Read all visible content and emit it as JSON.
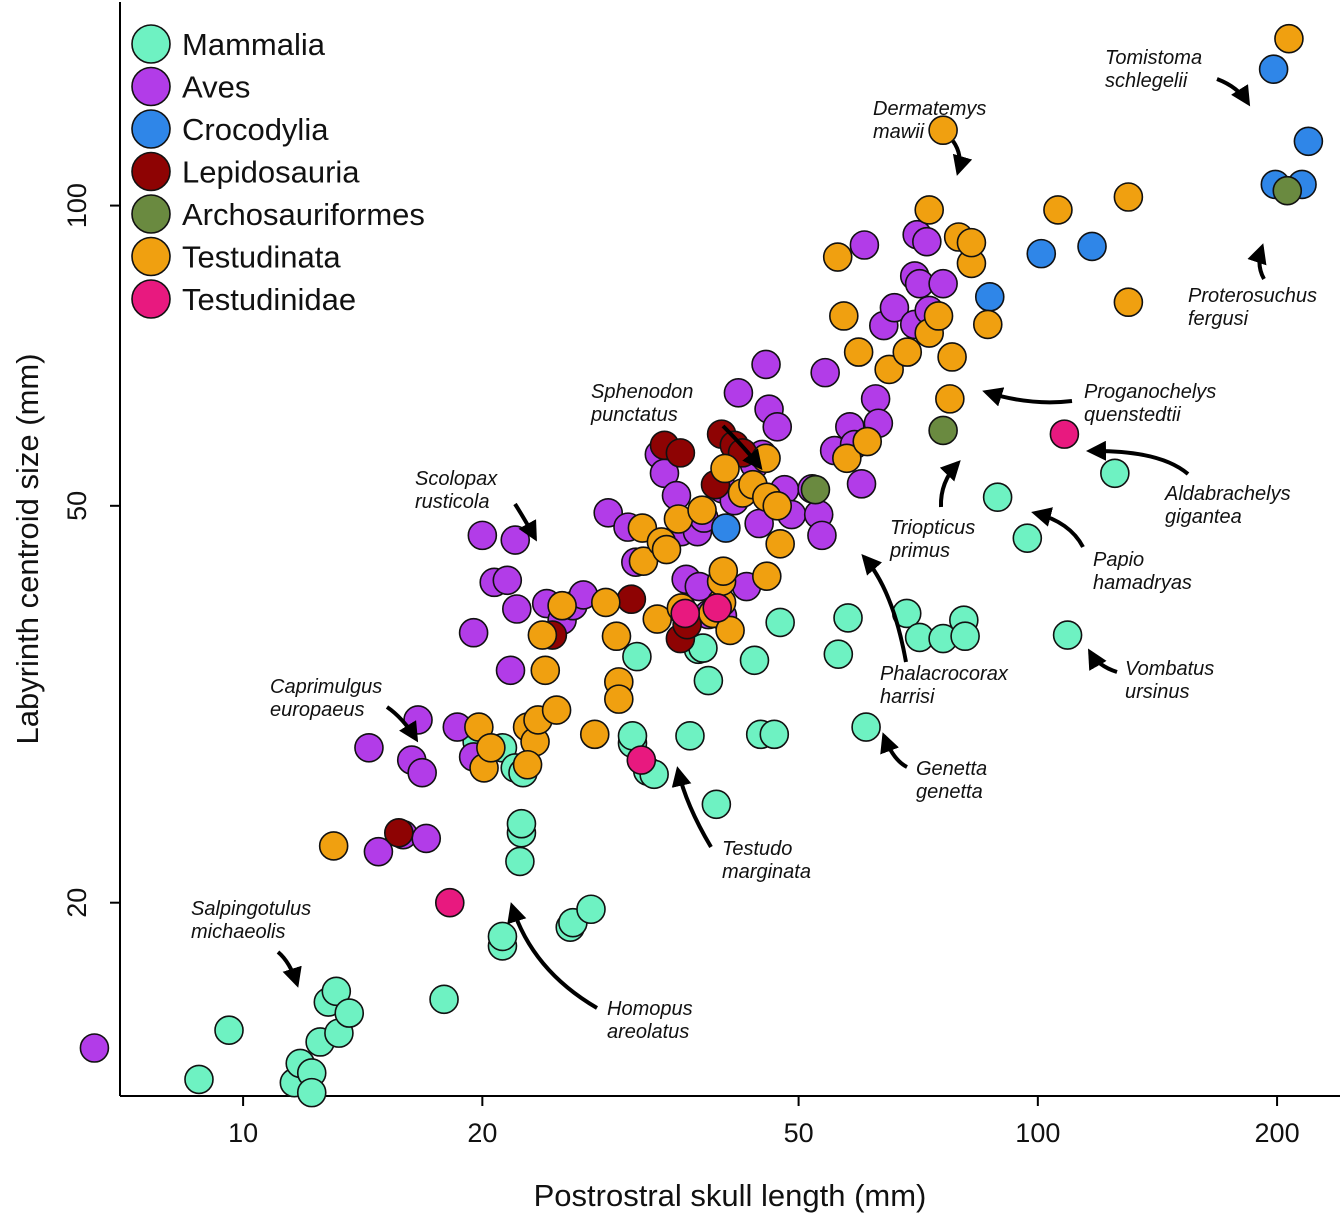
{
  "chart_data": {
    "type": "scatter",
    "scale": "log-log",
    "xlabel": "Postrostral skull length (mm)",
    "ylabel": "Labyrinth centroid size (mm)",
    "xlim": [
      7.0,
      240
    ],
    "ylim": [
      12.8,
      160
    ],
    "xticks": [
      10,
      20,
      50,
      100,
      200
    ],
    "yticks": [
      20,
      50,
      100
    ],
    "legend_position": "top-left",
    "groups": [
      {
        "name": "Mammalia",
        "color": "#6ef2c2"
      },
      {
        "name": "Aves",
        "color": "#b23ce8"
      },
      {
        "name": "Crocodylia",
        "color": "#2f86e8"
      },
      {
        "name": "Lepidosauria",
        "color": "#8e0303"
      },
      {
        "name": "Archosauriformes",
        "color": "#6a8a40"
      },
      {
        "name": "Testudinata",
        "color": "#f0a010"
      },
      {
        "name": "Testudinidae",
        "color": "#e8197f"
      }
    ],
    "series": [
      {
        "name": "Mammalia",
        "points": [
          [
            8.8,
            13.3
          ],
          [
            9.6,
            14.9
          ],
          [
            11.6,
            13.2
          ],
          [
            11.8,
            13.8
          ],
          [
            12.2,
            13.5
          ],
          [
            12.2,
            12.9
          ],
          [
            12.5,
            14.5
          ],
          [
            12.8,
            15.9
          ],
          [
            13.1,
            16.3
          ],
          [
            13.2,
            14.8
          ],
          [
            13.6,
            15.5
          ],
          [
            17.9,
            16.0
          ],
          [
            21.2,
            18.1
          ],
          [
            21.2,
            18.5
          ],
          [
            22.3,
            22.0
          ],
          [
            22.4,
            23.5
          ],
          [
            22.4,
            24.0
          ],
          [
            25.8,
            18.9
          ],
          [
            26.0,
            19.1
          ],
          [
            27.4,
            19.7
          ],
          [
            21.2,
            28.6
          ],
          [
            22.0,
            27.3
          ],
          [
            22.5,
            27.0
          ],
          [
            19.7,
            29.0
          ],
          [
            30.9,
            28.9
          ],
          [
            30.9,
            29.4
          ],
          [
            32.3,
            27.1
          ],
          [
            32.9,
            26.9
          ],
          [
            31.3,
            35.3
          ],
          [
            36.5,
            29.4
          ],
          [
            37.4,
            35.9
          ],
          [
            37.9,
            36.0
          ],
          [
            38.5,
            33.4
          ],
          [
            39.4,
            25.1
          ],
          [
            44.0,
            35.0
          ],
          [
            44.8,
            29.5
          ],
          [
            46.6,
            29.5
          ],
          [
            47.4,
            38.2
          ],
          [
            56.1,
            35.5
          ],
          [
            57.7,
            38.6
          ],
          [
            60.8,
            30.0
          ],
          [
            68.4,
            39.0
          ],
          [
            71.0,
            36.9
          ],
          [
            76.0,
            36.8
          ],
          [
            80.7,
            38.4
          ],
          [
            81.0,
            37.0
          ],
          [
            89.0,
            51.0
          ],
          [
            97.0,
            46.4
          ],
          [
            109.0,
            37.1
          ],
          [
            125.0,
            53.9
          ]
        ]
      },
      {
        "name": "Aves",
        "points": [
          [
            6.5,
            14.3
          ],
          [
            14.8,
            22.5
          ],
          [
            15.9,
            23.4
          ],
          [
            17.0,
            23.2
          ],
          [
            14.4,
            28.6
          ],
          [
            16.3,
            27.8
          ],
          [
            16.8,
            27.0
          ],
          [
            16.6,
            30.5
          ],
          [
            18.6,
            30.0
          ],
          [
            19.5,
            28.0
          ],
          [
            19.5,
            37.3
          ],
          [
            20.0,
            46.7
          ],
          [
            20.7,
            41.9
          ],
          [
            21.5,
            42.1
          ],
          [
            22.0,
            46.2
          ],
          [
            21.7,
            34.2
          ],
          [
            22.1,
            39.4
          ],
          [
            24.1,
            39.9
          ],
          [
            25.2,
            38.4
          ],
          [
            26.0,
            39.7
          ],
          [
            26.8,
            40.7
          ],
          [
            28.8,
            49.2
          ],
          [
            30.5,
            47.6
          ],
          [
            31.2,
            43.9
          ],
          [
            33.4,
            56.3
          ],
          [
            33.9,
            53.9
          ],
          [
            35.1,
            51.2
          ],
          [
            35.6,
            47.1
          ],
          [
            36.1,
            42.2
          ],
          [
            35.8,
            39.2
          ],
          [
            37.5,
            41.5
          ],
          [
            37.3,
            47.1
          ],
          [
            38.0,
            48.6
          ],
          [
            38.5,
            38.9
          ],
          [
            40.1,
            38.8
          ],
          [
            40.1,
            52.0
          ],
          [
            41.5,
            50.6
          ],
          [
            42.5,
            56.5
          ],
          [
            42.0,
            64.9
          ],
          [
            43.0,
            41.5
          ],
          [
            44.0,
            55.0
          ],
          [
            44.6,
            48.0
          ],
          [
            45.0,
            56.3
          ],
          [
            45.5,
            69.3
          ],
          [
            45.9,
            62.5
          ],
          [
            47.0,
            60.0
          ],
          [
            48.0,
            51.9
          ],
          [
            49.0,
            49.0
          ],
          [
            52.0,
            52.0
          ],
          [
            53.0,
            49.0
          ],
          [
            53.5,
            46.7
          ],
          [
            54.0,
            68.0
          ],
          [
            55.5,
            56.8
          ],
          [
            58.0,
            60.0
          ],
          [
            58.8,
            57.6
          ],
          [
            60.0,
            52.6
          ],
          [
            60.5,
            91.3
          ],
          [
            62.5,
            64.0
          ],
          [
            63.0,
            60.5
          ],
          [
            64.0,
            75.8
          ],
          [
            66.0,
            79.0
          ],
          [
            70.0,
            85.0
          ],
          [
            71.0,
            83.5
          ],
          [
            70.0,
            76.0
          ],
          [
            73.0,
            78.5
          ],
          [
            76.0,
            83.5
          ],
          [
            70.5,
            93.5
          ],
          [
            72.5,
            92.0
          ]
        ]
      },
      {
        "name": "Crocodylia",
        "points": [
          [
            87.0,
            81.0
          ],
          [
            101.0,
            89.5
          ],
          [
            117.0,
            91.0
          ],
          [
            40.5,
            47.5
          ],
          [
            198.0,
            137.0
          ],
          [
            199.0,
            105.0
          ],
          [
            215.0,
            105.0
          ],
          [
            219.0,
            116.0
          ]
        ]
      },
      {
        "name": "Lepidosauria",
        "points": [
          [
            15.7,
            23.5
          ],
          [
            24.5,
            37.1
          ],
          [
            30.8,
            40.3
          ],
          [
            33.9,
            57.5
          ],
          [
            35.5,
            56.5
          ],
          [
            35.5,
            36.8
          ],
          [
            36.2,
            38.0
          ],
          [
            39.3,
            52.5
          ],
          [
            40.0,
            59.0
          ],
          [
            41.5,
            57.5
          ],
          [
            42.5,
            56.5
          ]
        ]
      },
      {
        "name": "Archosauriformes",
        "points": [
          [
            52.5,
            51.9
          ],
          [
            76.0,
            59.5
          ],
          [
            206.0,
            103.5
          ]
        ]
      },
      {
        "name": "Testudinata",
        "points": [
          [
            13.0,
            22.8
          ],
          [
            19.8,
            30.0
          ],
          [
            20.1,
            27.3
          ],
          [
            20.5,
            28.6
          ],
          [
            22.8,
            30.0
          ],
          [
            23.3,
            29.0
          ],
          [
            22.8,
            27.5
          ],
          [
            23.5,
            30.5
          ],
          [
            23.8,
            37.1
          ],
          [
            24.0,
            34.2
          ],
          [
            24.8,
            31.2
          ],
          [
            25.2,
            39.7
          ],
          [
            27.7,
            29.5
          ],
          [
            28.6,
            40.0
          ],
          [
            29.5,
            37.0
          ],
          [
            29.7,
            33.3
          ],
          [
            29.7,
            32.0
          ],
          [
            31.8,
            47.5
          ],
          [
            31.9,
            44.0
          ],
          [
            33.2,
            38.5
          ],
          [
            33.6,
            46.0
          ],
          [
            34.1,
            45.2
          ],
          [
            35.3,
            48.5
          ],
          [
            35.6,
            39.5
          ],
          [
            37.8,
            49.5
          ],
          [
            39.0,
            39.0
          ],
          [
            40.0,
            40.0
          ],
          [
            40.0,
            42.0
          ],
          [
            40.2,
            43.0
          ],
          [
            40.4,
            54.5
          ],
          [
            41.0,
            37.5
          ],
          [
            42.5,
            51.5
          ],
          [
            43.8,
            52.5
          ],
          [
            45.5,
            55.8
          ],
          [
            45.6,
            51.0
          ],
          [
            45.6,
            42.5
          ],
          [
            47.0,
            50.0
          ],
          [
            47.4,
            45.8
          ],
          [
            56.0,
            88.8
          ],
          [
            57.0,
            77.5
          ],
          [
            57.5,
            55.8
          ],
          [
            59.5,
            71.3
          ],
          [
            61.0,
            58.0
          ],
          [
            65.0,
            68.5
          ],
          [
            68.5,
            71.3
          ],
          [
            73.0,
            99.0
          ],
          [
            73.0,
            74.5
          ],
          [
            75.0,
            77.5
          ],
          [
            76.0,
            119.0
          ],
          [
            77.5,
            64.0
          ],
          [
            78.0,
            70.5
          ],
          [
            79.5,
            93.0
          ],
          [
            82.5,
            87.5
          ],
          [
            82.5,
            91.8
          ],
          [
            86.5,
            76.0
          ],
          [
            106.0,
            99.0
          ],
          [
            130.0,
            102.0
          ],
          [
            130.0,
            80.0
          ],
          [
            207.0,
            147.0
          ]
        ]
      },
      {
        "name": "Testudinidae",
        "points": [
          [
            18.2,
            20.0
          ],
          [
            31.7,
            27.8
          ],
          [
            39.5,
            39.5
          ],
          [
            36.0,
            39.0
          ],
          [
            108.0,
            59.0
          ]
        ]
      }
    ],
    "annotations": [
      {
        "text": [
          "Salpingotulus",
          "michaeolis"
        ],
        "target": [
          9.6,
          14.9
        ]
      },
      {
        "text": [
          "Caprimulgus",
          "europaeus"
        ],
        "target": [
          14.4,
          28.6
        ]
      },
      {
        "text": [
          "Scolopax",
          "rusticola"
        ],
        "target": [
          20.0,
          46.7
        ]
      },
      {
        "text": [
          "Sphenodon",
          "punctatus"
        ],
        "target": [
          40.5,
          57.3
        ]
      },
      {
        "text": [
          "Homopus",
          "areolatus"
        ],
        "target": [
          18.2,
          20.0
        ]
      },
      {
        "text": [
          "Testudo",
          "marginata"
        ],
        "target": [
          31.7,
          27.8
        ]
      },
      {
        "text": [
          "Genetta",
          "genetta"
        ],
        "target": [
          60.8,
          30.0
        ]
      },
      {
        "text": [
          "Phalacrocorax",
          "harrisi"
        ],
        "target": [
          53.5,
          46.7
        ]
      },
      {
        "text": [
          "Triopticus",
          "primus"
        ],
        "target": [
          76.0,
          59.5
        ]
      },
      {
        "text": [
          "Dermatemys",
          "mawii"
        ],
        "target": [
          76.0,
          119.0
        ]
      },
      {
        "text": [
          "Proganochelys",
          "quenstedtii"
        ],
        "target": [
          78.0,
          70.5
        ]
      },
      {
        "text": [
          "Papio",
          "hamadryas"
        ],
        "target": [
          89.0,
          51.0
        ]
      },
      {
        "text": [
          "Vombatus",
          "ursinus"
        ],
        "target": [
          109.0,
          37.1
        ]
      },
      {
        "text": [
          "Aldabrachelys",
          "gigantea"
        ],
        "target": [
          108.0,
          59.0
        ]
      },
      {
        "text": [
          "Tomistoma",
          "schlegelii"
        ],
        "target": [
          198.0,
          137.0
        ]
      },
      {
        "text": [
          "Proterosuchus",
          "fergusi"
        ],
        "target": [
          206.0,
          103.5
        ]
      }
    ]
  }
}
